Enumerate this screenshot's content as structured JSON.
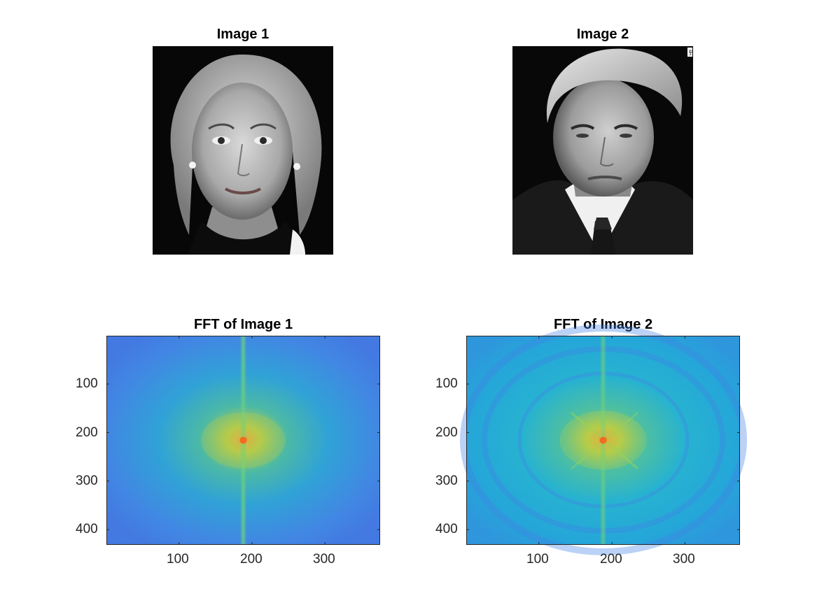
{
  "figure": {
    "background": "#ffffff"
  },
  "panels": {
    "image1": {
      "title": "Image 1"
    },
    "image2": {
      "title": "Image 2",
      "corner_mark": "HB"
    },
    "fft1": {
      "title": "FFT of Image 1"
    },
    "fft2": {
      "title": "FFT of Image 2"
    }
  },
  "colors": {
    "fft_low": "#3f7fe6",
    "fft_mid": "#22b7cf",
    "fft_high": "#c9d23a",
    "fft_peak": "#f36b1e",
    "tick": "#262626"
  },
  "chart_data": [
    {
      "type": "heatmap",
      "title": "FFT of Image 1",
      "xlabel": "",
      "ylabel": "",
      "xlim": [
        0.5,
        375.5
      ],
      "ylim": [
        0.5,
        431.5
      ],
      "y_reversed": true,
      "xticks": [
        100,
        200,
        300
      ],
      "yticks": [
        100,
        200,
        300,
        400
      ],
      "xtick_labels": [
        "100",
        "200",
        "300"
      ],
      "ytick_labels": [
        "100",
        "200",
        "300",
        "400"
      ],
      "peak": {
        "x": 188,
        "y": 216
      },
      "colormap": "parula",
      "grid": false
    },
    {
      "type": "heatmap",
      "title": "FFT of Image 2",
      "xlabel": "",
      "ylabel": "",
      "xlim": [
        0.5,
        375.5
      ],
      "ylim": [
        0.5,
        431.5
      ],
      "y_reversed": true,
      "xticks": [
        100,
        200,
        300
      ],
      "yticks": [
        100,
        200,
        300,
        400
      ],
      "xtick_labels": [
        "100",
        "200",
        "300"
      ],
      "ytick_labels": [
        "100",
        "200",
        "300",
        "400"
      ],
      "peak": {
        "x": 188,
        "y": 216
      },
      "colormap": "parula",
      "grid": false
    }
  ]
}
